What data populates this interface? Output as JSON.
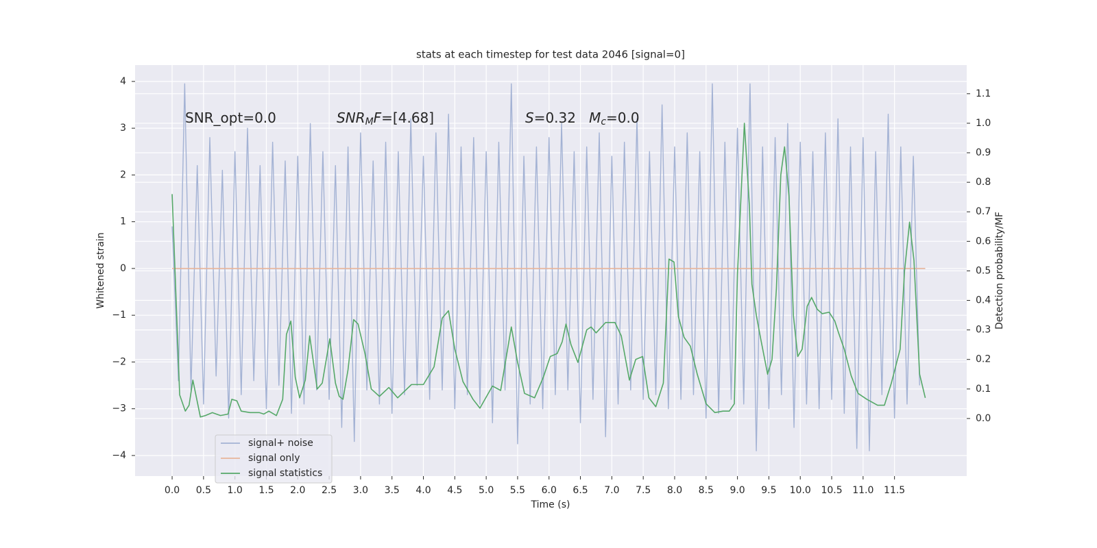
{
  "chart_data": {
    "type": "line",
    "title": "stats at each timestep for test data 2046 [signal=0]",
    "xlabel": "Time (s)",
    "ylabel": "Whitened strain",
    "y2label": "Detection probability/MF",
    "grid": true,
    "legend": "lower left",
    "xlim": [
      -0.59,
      12.65
    ],
    "ylim": [
      -4.44,
      4.35
    ],
    "y2lim": [
      -0.195,
      1.197
    ],
    "xticks": [
      {
        "value": 0,
        "label": "0.0"
      },
      0.5,
      {
        "value": 1,
        "label": "1.0"
      },
      1.5,
      {
        "value": 2,
        "label": "2.0"
      },
      2.5,
      {
        "value": 3,
        "label": "3.0"
      },
      3.5,
      {
        "value": 4,
        "label": "4.0"
      },
      4.5,
      {
        "value": 5,
        "label": "5.0"
      },
      5.5,
      {
        "value": 6,
        "label": "6.0"
      },
      6.5,
      {
        "value": 7,
        "label": "7.0"
      },
      7.5,
      {
        "value": 8,
        "label": "8.0"
      },
      8.5,
      {
        "value": 9,
        "label": "9.0"
      },
      9.5,
      {
        "value": 10,
        "label": "10.0"
      },
      10.5,
      {
        "value": 11,
        "label": "11.0"
      },
      11.5
    ],
    "yticks": [
      {
        "value": -4,
        "label": "−4"
      },
      {
        "value": -3,
        "label": "−3"
      },
      {
        "value": -2,
        "label": "−2"
      },
      {
        "value": -1,
        "label": "−1"
      },
      0,
      1,
      2,
      3,
      4
    ],
    "y2ticks": [
      {
        "value": 0,
        "label": "0.0"
      },
      0.1,
      0.2,
      0.3,
      0.4,
      0.5,
      0.6,
      0.7,
      0.8,
      0.9,
      {
        "value": 1,
        "label": "1.0"
      },
      1.1
    ],
    "annotations": [
      {
        "segments": [
          {
            "text": "SNR_opt=0.0"
          }
        ]
      },
      {
        "segments": [
          {
            "text": "SNR",
            "italic": true
          },
          {
            "text": "M",
            "italic": true,
            "sub": true
          },
          {
            "text": "F",
            "italic": true
          },
          {
            "text": "=[4.68]"
          }
        ]
      },
      {
        "segments": [
          {
            "text": "S",
            "italic": true
          },
          {
            "text": "=0.32   "
          },
          {
            "text": "M",
            "italic": true
          },
          {
            "text": "c",
            "italic": true,
            "sub": true
          },
          {
            "text": "=0.0"
          }
        ]
      }
    ],
    "series": [
      {
        "name": "signal+ noise",
        "color": "#a3b2d4",
        "axis": "y",
        "x": [
          0,
          0.1,
          0.2,
          0.3,
          0.4,
          0.5,
          0.6,
          0.7,
          0.8,
          0.9,
          1,
          1.1,
          1.2,
          1.3,
          1.4,
          1.5,
          1.6,
          1.7,
          1.8,
          1.9,
          2,
          2.1,
          2.2,
          2.3,
          2.4,
          2.5,
          2.6,
          2.7,
          2.8,
          2.9,
          3,
          3.1,
          3.2,
          3.3,
          3.4,
          3.5,
          3.6,
          3.7,
          3.8,
          3.9,
          4,
          4.1,
          4.2,
          4.3,
          4.4,
          4.5,
          4.6,
          4.7,
          4.8,
          4.9,
          5,
          5.1,
          5.2,
          5.3,
          5.4,
          5.5,
          5.6,
          5.7,
          5.8,
          5.9,
          6,
          6.1,
          6.2,
          6.3,
          6.4,
          6.5,
          6.6,
          6.7,
          6.8,
          6.9,
          7,
          7.1,
          7.2,
          7.3,
          7.4,
          7.5,
          7.6,
          7.7,
          7.8,
          7.9,
          8,
          8.1,
          8.2,
          8.3,
          8.4,
          8.5,
          8.6,
          8.7,
          8.8,
          8.9,
          9,
          9.1,
          9.2,
          9.3,
          9.4,
          9.5,
          9.6,
          9.7,
          9.8,
          9.9,
          10,
          10.1,
          10.2,
          10.3,
          10.4,
          10.5,
          10.6,
          10.7,
          10.8,
          10.9,
          11,
          11.1,
          11.2,
          11.3,
          11.4,
          11.5,
          11.6,
          11.7,
          11.8,
          11.9
        ],
        "values": [
          0.9,
          -2.4,
          3.95,
          -2.6,
          2.2,
          -2.9,
          2.8,
          -2.3,
          2.1,
          -3.2,
          2.5,
          -2.7,
          3.0,
          -2.4,
          2.2,
          -3.0,
          2.7,
          -2.5,
          2.3,
          -3.1,
          2.4,
          -2.9,
          3.1,
          -2.6,
          2.5,
          -2.8,
          2.2,
          -3.4,
          2.6,
          -3.7,
          2.9,
          -2.6,
          2.3,
          -2.9,
          2.7,
          -3.1,
          2.5,
          -2.7,
          3.2,
          -2.5,
          2.4,
          -2.8,
          2.9,
          -2.6,
          3.3,
          -3.0,
          2.6,
          -2.7,
          2.8,
          -2.9,
          2.5,
          -3.3,
          2.7,
          -2.6,
          3.95,
          -3.75,
          2.4,
          -2.9,
          2.6,
          -3.0,
          2.8,
          -2.7,
          3.1,
          -2.6,
          2.5,
          -3.3,
          2.6,
          -2.8,
          2.9,
          -3.6,
          2.4,
          -2.9,
          2.7,
          -2.6,
          3.2,
          -2.8,
          2.5,
          -2.7,
          3.5,
          -3.0,
          2.6,
          -2.8,
          2.9,
          -2.7,
          2.5,
          -3.2,
          3.95,
          -3.1,
          2.7,
          -2.8,
          3.0,
          -2.9,
          3.95,
          -3.9,
          2.6,
          -3.0,
          2.8,
          -2.7,
          3.1,
          -3.4,
          2.7,
          -2.9,
          2.5,
          -3.0,
          2.9,
          -2.8,
          3.2,
          -3.1,
          2.6,
          -3.85,
          2.8,
          -3.9,
          2.5,
          -2.7,
          3.3,
          -3.2,
          2.6,
          -2.9,
          2.4,
          -2.5
        ]
      },
      {
        "name": "signal only",
        "color": "#e8b59a",
        "axis": "y",
        "x": [
          0,
          11.99
        ],
        "values": [
          0,
          0
        ]
      },
      {
        "name": "signal statistics",
        "color": "#55a868",
        "axis": "y2",
        "x": [
          0,
          0.12,
          0.21,
          0.27,
          0.33,
          0.45,
          0.53,
          0.64,
          0.77,
          0.89,
          0.95,
          1.03,
          1.1,
          1.24,
          1.39,
          1.46,
          1.54,
          1.66,
          1.76,
          1.82,
          1.89,
          1.96,
          2.03,
          2.12,
          2.19,
          2.31,
          2.39,
          2.51,
          2.6,
          2.66,
          2.72,
          2.8,
          2.89,
          2.96,
          3.07,
          3.17,
          3.3,
          3.45,
          3.59,
          3.81,
          4.0,
          4.17,
          4.3,
          4.4,
          4.5,
          4.63,
          4.79,
          4.9,
          5.1,
          5.23,
          5.4,
          5.5,
          5.61,
          5.77,
          5.91,
          6.02,
          6.13,
          6.21,
          6.27,
          6.35,
          6.46,
          6.6,
          6.67,
          6.75,
          6.9,
          7.05,
          7.15,
          7.28,
          7.38,
          7.49,
          7.59,
          7.7,
          7.82,
          7.91,
          7.99,
          8.06,
          8.15,
          8.25,
          8.36,
          8.5,
          8.64,
          8.77,
          8.87,
          8.95,
          9.0,
          9.11,
          9.19,
          9.23,
          9.3,
          9.37,
          9.48,
          9.55,
          9.62,
          9.69,
          9.75,
          9.82,
          9.89,
          9.96,
          10.03,
          10.11,
          10.18,
          10.27,
          10.35,
          10.46,
          10.55,
          10.61,
          10.7,
          10.81,
          10.92,
          11.06,
          11.23,
          11.34,
          11.45,
          11.59,
          11.66,
          11.74,
          11.81,
          11.9,
          11.99
        ],
        "values": [
          0.76,
          0.08,
          0.025,
          0.045,
          0.13,
          0.005,
          0.01,
          0.02,
          0.01,
          0.015,
          0.065,
          0.06,
          0.025,
          0.02,
          0.02,
          0.015,
          0.025,
          0.01,
          0.065,
          0.285,
          0.33,
          0.14,
          0.07,
          0.13,
          0.28,
          0.1,
          0.12,
          0.27,
          0.12,
          0.075,
          0.065,
          0.165,
          0.335,
          0.32,
          0.22,
          0.1,
          0.075,
          0.105,
          0.07,
          0.115,
          0.115,
          0.175,
          0.34,
          0.365,
          0.235,
          0.125,
          0.065,
          0.035,
          0.11,
          0.095,
          0.31,
          0.19,
          0.085,
          0.07,
          0.14,
          0.21,
          0.22,
          0.26,
          0.32,
          0.25,
          0.19,
          0.3,
          0.31,
          0.29,
          0.325,
          0.325,
          0.28,
          0.13,
          0.2,
          0.21,
          0.07,
          0.04,
          0.12,
          0.54,
          0.53,
          0.345,
          0.275,
          0.245,
          0.15,
          0.05,
          0.02,
          0.025,
          0.025,
          0.05,
          0.49,
          1.0,
          0.72,
          0.455,
          0.35,
          0.27,
          0.15,
          0.2,
          0.44,
          0.825,
          0.92,
          0.755,
          0.35,
          0.21,
          0.235,
          0.38,
          0.41,
          0.37,
          0.355,
          0.36,
          0.33,
          0.29,
          0.235,
          0.145,
          0.085,
          0.065,
          0.045,
          0.045,
          0.12,
          0.235,
          0.5,
          0.665,
          0.535,
          0.15,
          0.07
        ]
      }
    ]
  }
}
